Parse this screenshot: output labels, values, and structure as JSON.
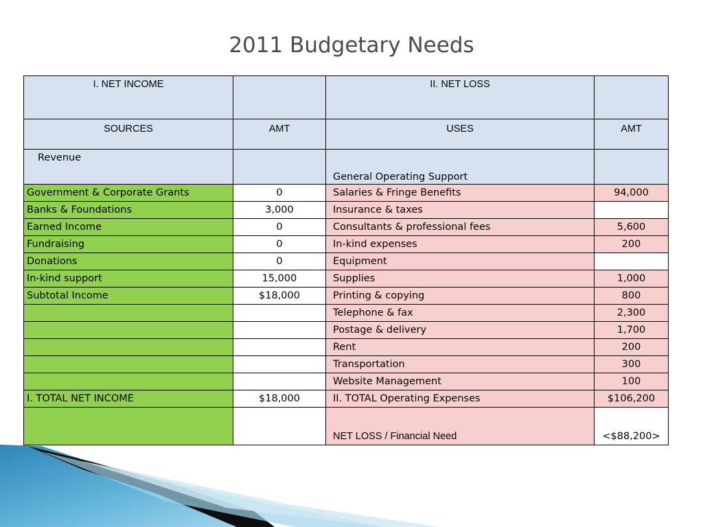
{
  "title": "2011 Budgetary Needs",
  "table": {
    "header_left": "I. NET INCOME",
    "header_right": "II. NET LOSS",
    "col_sources": "SOURCES",
    "col_amt_left": "AMT",
    "col_uses": "USES",
    "col_amt_right": "AMT",
    "section_left": "Revenue",
    "section_right": "General Operating Support",
    "rows": [
      {
        "source": "Government & Corporate Grants",
        "amt": "0",
        "use": "Salaries & Fringe Benefits",
        "use_amt": "94,000"
      },
      {
        "source": "Banks & Foundations",
        "amt": "3,000",
        "use": "Insurance & taxes",
        "use_amt": ""
      },
      {
        "source": "Earned Income",
        "amt": "0",
        "use": "Consultants & professional fees",
        "use_amt": "5,600"
      },
      {
        "source": "Fundraising",
        "amt": "0",
        "use": "In-kind expenses",
        "use_amt": "200"
      },
      {
        "source": "Donations",
        "amt": "0",
        "use": "Equipment",
        "use_amt": ""
      },
      {
        "source": "In-kind support",
        "amt": "15,000",
        "use": "Supplies",
        "use_amt": "1,000"
      },
      {
        "source": "Subtotal Income",
        "amt": "$18,000",
        "use": "Printing & copying",
        "use_amt": "800"
      },
      {
        "source": "",
        "amt": "",
        "use": "Telephone & fax",
        "use_amt": "2,300"
      },
      {
        "source": "",
        "amt": "",
        "use": "Postage & delivery",
        "use_amt": "1,700"
      },
      {
        "source": "",
        "amt": "",
        "use": "Rent",
        "use_amt": "200"
      },
      {
        "source": "",
        "amt": "",
        "use": "Transportation",
        "use_amt": "300"
      },
      {
        "source": "",
        "amt": "",
        "use": "Website Management",
        "use_amt": "100"
      },
      {
        "source": "I. TOTAL NET INCOME",
        "amt": "$18,000",
        "use": "II. TOTAL Operating Expenses",
        "use_amt": "$106,200"
      }
    ],
    "final_label": "NET LOSS / Financial Need",
    "final_value": "<$88,200>"
  },
  "colors": {
    "header_fill": "#d7e2f0",
    "income_fill": "#92d050",
    "expense_fill": "#f8cfcf",
    "expense_text": "#e0596b"
  }
}
